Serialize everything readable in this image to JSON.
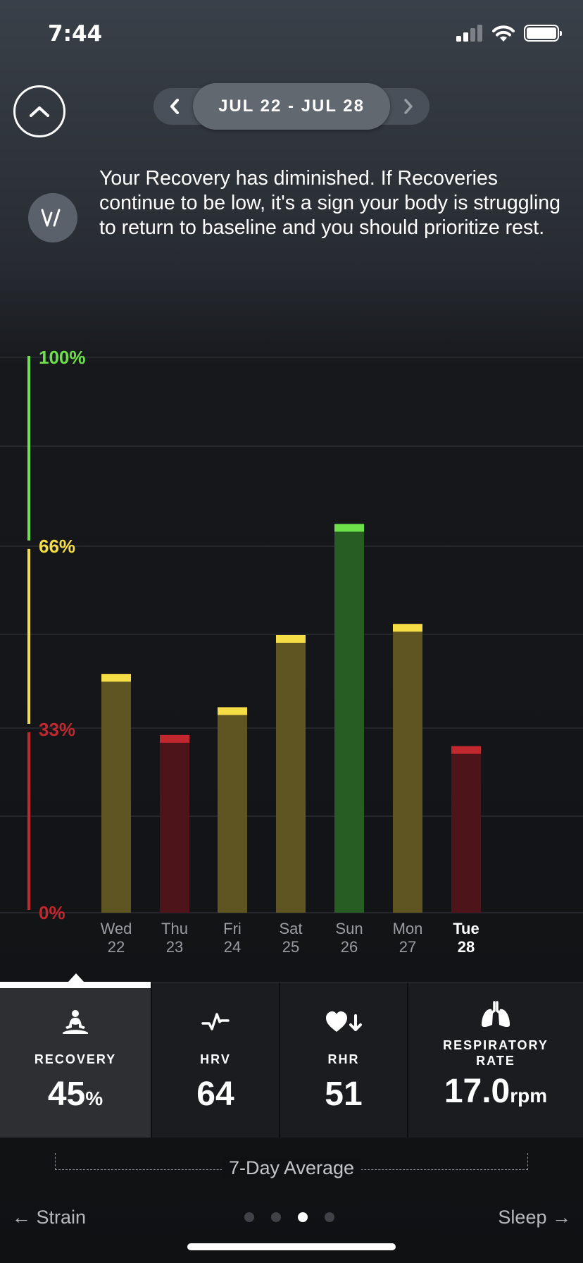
{
  "status_bar": {
    "time": "7:44"
  },
  "date_nav": {
    "range": "JUL 22 - JUL 28"
  },
  "insight": {
    "text": "Your Recovery has diminished. If Recoveries continue to be low, it's a sign your body is struggling to return to baseline and you should prioritize rest."
  },
  "chart_data": {
    "type": "bar",
    "categories": [
      "Wed\n22",
      "Thu\n23",
      "Fri\n24",
      "Sat\n25",
      "Sun\n26",
      "Mon\n27",
      "Tue\n28"
    ],
    "days": [
      "Wed",
      "Thu",
      "Fri",
      "Sat",
      "Sun",
      "Mon",
      "Tue"
    ],
    "dates": [
      "22",
      "23",
      "24",
      "25",
      "26",
      "27",
      "28"
    ],
    "values": [
      43,
      32,
      37,
      50,
      70,
      52,
      30
    ],
    "ylim": [
      0,
      100
    ],
    "yticks": [
      "100%",
      "66%",
      "33%",
      "0%"
    ],
    "ytick_values": [
      100,
      66,
      33,
      0
    ],
    "zones": {
      "green": "#6ee14a",
      "yellow": "#f5dd45",
      "red": "#c1282d"
    },
    "highlighted_day_index": 6,
    "grid": true
  },
  "metrics": [
    {
      "label": "RECOVERY",
      "value": "45",
      "unit": "%",
      "icon": "meditation-icon"
    },
    {
      "label": "HRV",
      "value": "64",
      "unit": "",
      "icon": "hrv-pulse-icon"
    },
    {
      "label": "RHR",
      "value": "51",
      "unit": "",
      "icon": "heart-down-icon"
    },
    {
      "label_line1": "RESPIRATORY",
      "label_line2": "RATE",
      "value": "17.0",
      "unit": "rpm",
      "icon": "lungs-icon"
    }
  ],
  "average_label": "7-Day Average",
  "footer": {
    "prev": "Strain",
    "next": "Sleep"
  },
  "pagination": {
    "pages": 4,
    "active_index": 2
  }
}
